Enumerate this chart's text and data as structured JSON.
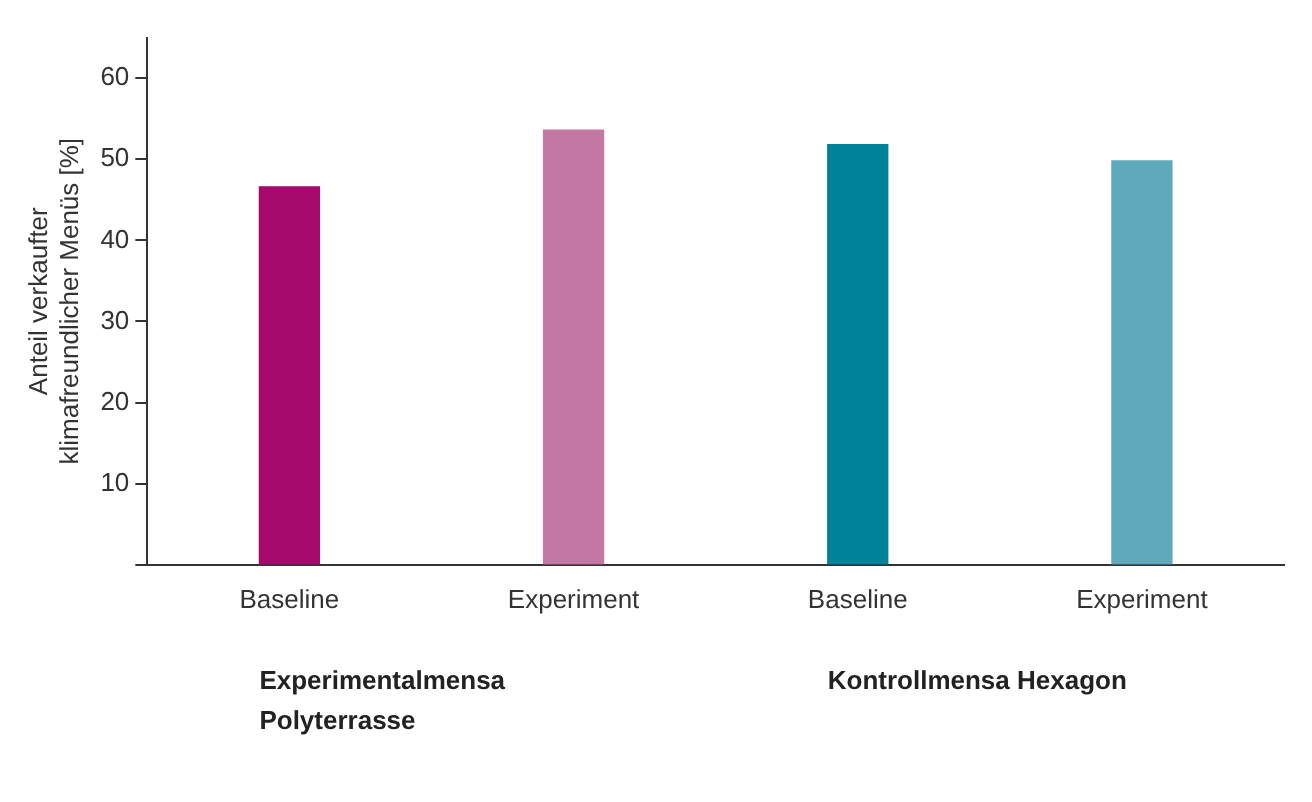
{
  "chart_data": {
    "type": "bar",
    "ylabel": "Anteil verkaufter\nklimafreundlicher Menüs [%]",
    "categories": [
      "Baseline",
      "Experiment",
      "Baseline",
      "Experiment"
    ],
    "values": [
      46.6,
      53.6,
      51.8,
      49.8
    ],
    "colors": [
      "#a5096e",
      "#c377a3",
      "#00829a",
      "#60a8bb"
    ],
    "ylim": [
      0,
      65
    ],
    "yticks": [
      {
        "value": 0,
        "label": null
      },
      10,
      20,
      30,
      40,
      50,
      60
    ],
    "grid": false,
    "annotations": [
      "Experimentalmensa Polyterrasse",
      "Kontrollmensa Hexagon"
    ]
  }
}
